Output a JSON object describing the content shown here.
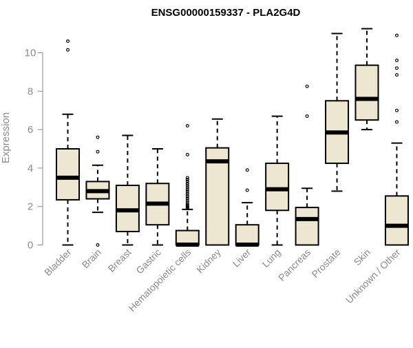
{
  "chart_data": {
    "type": "boxplot",
    "title": "ENSG00000159337 - PLA2G4D",
    "xlabel": "",
    "ylabel": "Expression",
    "ylim": [
      0,
      11.3
    ],
    "yticks": [
      0,
      2,
      4,
      6,
      8,
      10
    ],
    "box_fill": "#ede6d0",
    "stroke": "#000000",
    "categories": [
      "Bladder",
      "Brain",
      "Breast",
      "Gastric",
      "Hematopoietic cells",
      "Kidney",
      "Liver",
      "Lung",
      "Pancreas",
      "Prostate",
      "Skin",
      "Unknown / Other"
    ],
    "boxes": [
      {
        "name": "Bladder",
        "whisker_low": 0,
        "q1": 2.35,
        "median": 3.5,
        "q3": 5.0,
        "whisker_high": 6.8,
        "outliers": [
          10.15,
          10.6
        ]
      },
      {
        "name": "Brain",
        "whisker_low": 1.7,
        "q1": 2.4,
        "median": 2.8,
        "q3": 3.3,
        "whisker_high": 4.15,
        "outliers": [
          0.0,
          4.85,
          5.6
        ]
      },
      {
        "name": "Breast",
        "whisker_low": 0,
        "q1": 0.7,
        "median": 1.8,
        "q3": 3.1,
        "whisker_high": 5.7,
        "outliers": []
      },
      {
        "name": "Gastric",
        "whisker_low": 0,
        "q1": 1.05,
        "median": 2.15,
        "q3": 3.2,
        "whisker_high": 5.0,
        "outliers": []
      },
      {
        "name": "Hematopoietic cells",
        "whisker_low": 0,
        "q1": 0,
        "median": 0.02,
        "q3": 0.75,
        "whisker_high": 1.85,
        "outliers": [
          1.9,
          1.95,
          2.0,
          2.05,
          2.1,
          2.2,
          2.3,
          2.4,
          2.5,
          2.6,
          2.7,
          2.8,
          2.9,
          3.0,
          3.1,
          3.2,
          3.3,
          3.4,
          3.5,
          4.7,
          6.2
        ]
      },
      {
        "name": "Kidney",
        "whisker_low": 0,
        "q1": 0,
        "median": 4.35,
        "q3": 5.05,
        "whisker_high": 6.55,
        "outliers": []
      },
      {
        "name": "Liver",
        "whisker_low": 0,
        "q1": 0,
        "median": 0.02,
        "q3": 1.05,
        "whisker_high": 2.2,
        "outliers": [
          2.85,
          3.9
        ]
      },
      {
        "name": "Lung",
        "whisker_low": 0,
        "q1": 1.8,
        "median": 2.9,
        "q3": 4.25,
        "whisker_high": 6.7,
        "outliers": []
      },
      {
        "name": "Pancreas",
        "whisker_low": 0,
        "q1": 0,
        "median": 1.35,
        "q3": 1.95,
        "whisker_high": 2.95,
        "outliers": [
          6.7,
          8.25
        ]
      },
      {
        "name": "Prostate",
        "whisker_low": 2.8,
        "q1": 4.25,
        "median": 5.85,
        "q3": 7.5,
        "whisker_high": 11.0,
        "outliers": []
      },
      {
        "name": "Skin",
        "whisker_low": 6.0,
        "q1": 6.5,
        "median": 7.6,
        "q3": 9.35,
        "whisker_high": 11.25,
        "outliers": []
      },
      {
        "name": "Unknown / Other",
        "whisker_low": 0,
        "q1": 0,
        "median": 1.0,
        "q3": 2.55,
        "whisker_high": 5.3,
        "outliers": [
          6.4,
          7.0,
          8.85,
          9.2,
          9.6,
          10.9
        ]
      }
    ]
  }
}
